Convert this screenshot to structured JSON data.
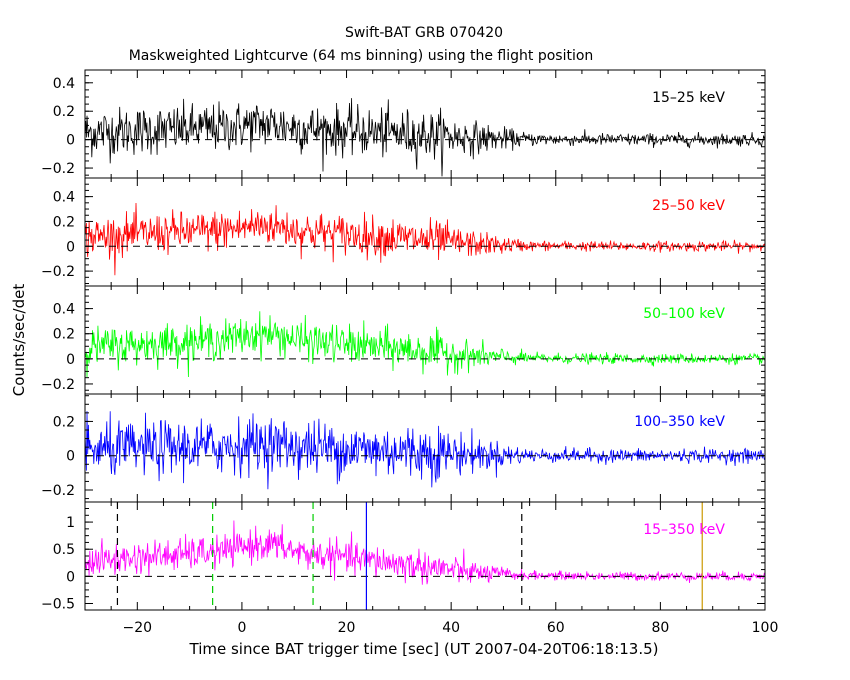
{
  "chart_data": {
    "type": "line",
    "title": "Swift-BAT GRB 070420",
    "subtitle": "Maskweighted Lightcurve (64 ms binning) using the flight position",
    "xlabel": "Time since BAT trigger time [sec] (UT 2007-04-20T06:18:13.5)",
    "ylabel": "Counts/sec/det",
    "xlim": [
      -30,
      100
    ],
    "x_ticks": [
      -20,
      0,
      20,
      40,
      60,
      80,
      100
    ],
    "x_tick_labels": [
      "−20",
      "0",
      "20",
      "40",
      "60",
      "80",
      "100"
    ],
    "bin_seconds": 0.064,
    "panels": [
      {
        "name": "15-25 keV",
        "label": "15–25 keV",
        "color": "#000000",
        "ylim": [
          -0.27,
          0.49
        ],
        "yticks": [
          -0.2,
          0,
          0.2,
          0.4
        ],
        "ytick_labels": [
          "−0.2",
          "0",
          "0.2",
          "0.4"
        ],
        "peak": 0.11,
        "noise": 0.085,
        "tail_noise": 0.022
      },
      {
        "name": "25-50 keV",
        "label": "25–50 keV",
        "color": "#ff0000",
        "ylim": [
          -0.32,
          0.55
        ],
        "yticks": [
          -0.2,
          0,
          0.2,
          0.4
        ],
        "ytick_labels": [
          "−0.2",
          "0",
          "0.2",
          "0.4"
        ],
        "peak": 0.17,
        "noise": 0.08,
        "tail_noise": 0.02
      },
      {
        "name": "50-100 keV",
        "label": "50–100 keV",
        "color": "#00ff00",
        "ylim": [
          -0.28,
          0.58
        ],
        "yticks": [
          -0.2,
          0,
          0.2,
          0.4
        ],
        "ytick_labels": [
          "−0.2",
          "0",
          "0.2",
          "0.4"
        ],
        "peak": 0.2,
        "noise": 0.075,
        "tail_noise": 0.02
      },
      {
        "name": "100-350 keV",
        "label": "100–350 keV",
        "color": "#0000ff",
        "ylim": [
          -0.27,
          0.36
        ],
        "yticks": [
          -0.2,
          0,
          0.2
        ],
        "ytick_labels": [
          "−0.2",
          "0",
          "0.2"
        ],
        "peak": 0.07,
        "noise": 0.08,
        "tail_noise": 0.02
      },
      {
        "name": "15-350 keV",
        "label": "15–350 keV",
        "color": "#ff00ff",
        "ylim": [
          -0.62,
          1.37
        ],
        "yticks": [
          -0.5,
          0,
          0.5,
          1
        ],
        "ytick_labels": [
          "−0.5",
          "0",
          "0.5",
          "1"
        ],
        "peak": 0.6,
        "noise": 0.15,
        "tail_noise": 0.04,
        "markers": [
          {
            "x": -23.8,
            "color": "#000000",
            "style": "dashed"
          },
          {
            "x": -5.6,
            "color": "#00cc00",
            "style": "dashed"
          },
          {
            "x": 13.6,
            "color": "#00cc00",
            "style": "dashed"
          },
          {
            "x": 23.8,
            "color": "#0000ff",
            "style": "solid"
          },
          {
            "x": 53.5,
            "color": "#000000",
            "style": "dashed"
          },
          {
            "x": 88.0,
            "color": "#cc9900",
            "style": "solid"
          }
        ]
      }
    ]
  }
}
